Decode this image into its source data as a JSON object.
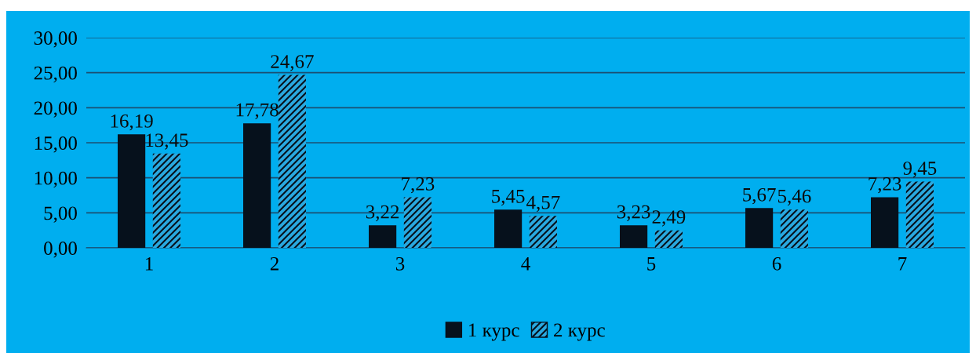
{
  "chart_data": {
    "type": "bar",
    "categories": [
      "1",
      "2",
      "3",
      "4",
      "5",
      "6",
      "7"
    ],
    "series": [
      {
        "name": "1 курс",
        "color": "#06111c",
        "values": [
          16.19,
          17.78,
          3.22,
          5.45,
          3.23,
          5.67,
          7.23
        ],
        "value_labels": [
          "16,19",
          "17,78",
          "3,22",
          "5,45",
          "3,23",
          "5,67",
          "7,23"
        ]
      },
      {
        "name": "2 курс",
        "color": "#29a9e0",
        "values": [
          13.45,
          24.67,
          7.23,
          4.57,
          2.49,
          5.46,
          9.45
        ],
        "value_labels": [
          "13,45",
          "24,67",
          "7,23",
          "4,57",
          "2,49",
          "5,46",
          "9,45"
        ]
      }
    ],
    "ylim": [
      0,
      30
    ],
    "yticks": [
      {
        "value": 0,
        "label": "0,00"
      },
      {
        "value": 5,
        "label": "5,00"
      },
      {
        "value": 10,
        "label": "10,00"
      },
      {
        "value": 15,
        "label": "15,00"
      },
      {
        "value": 20,
        "label": "20,00"
      },
      {
        "value": 25,
        "label": "25,00"
      },
      {
        "value": 30,
        "label": "30,00"
      }
    ],
    "grid": "y",
    "legend": "bottom"
  }
}
